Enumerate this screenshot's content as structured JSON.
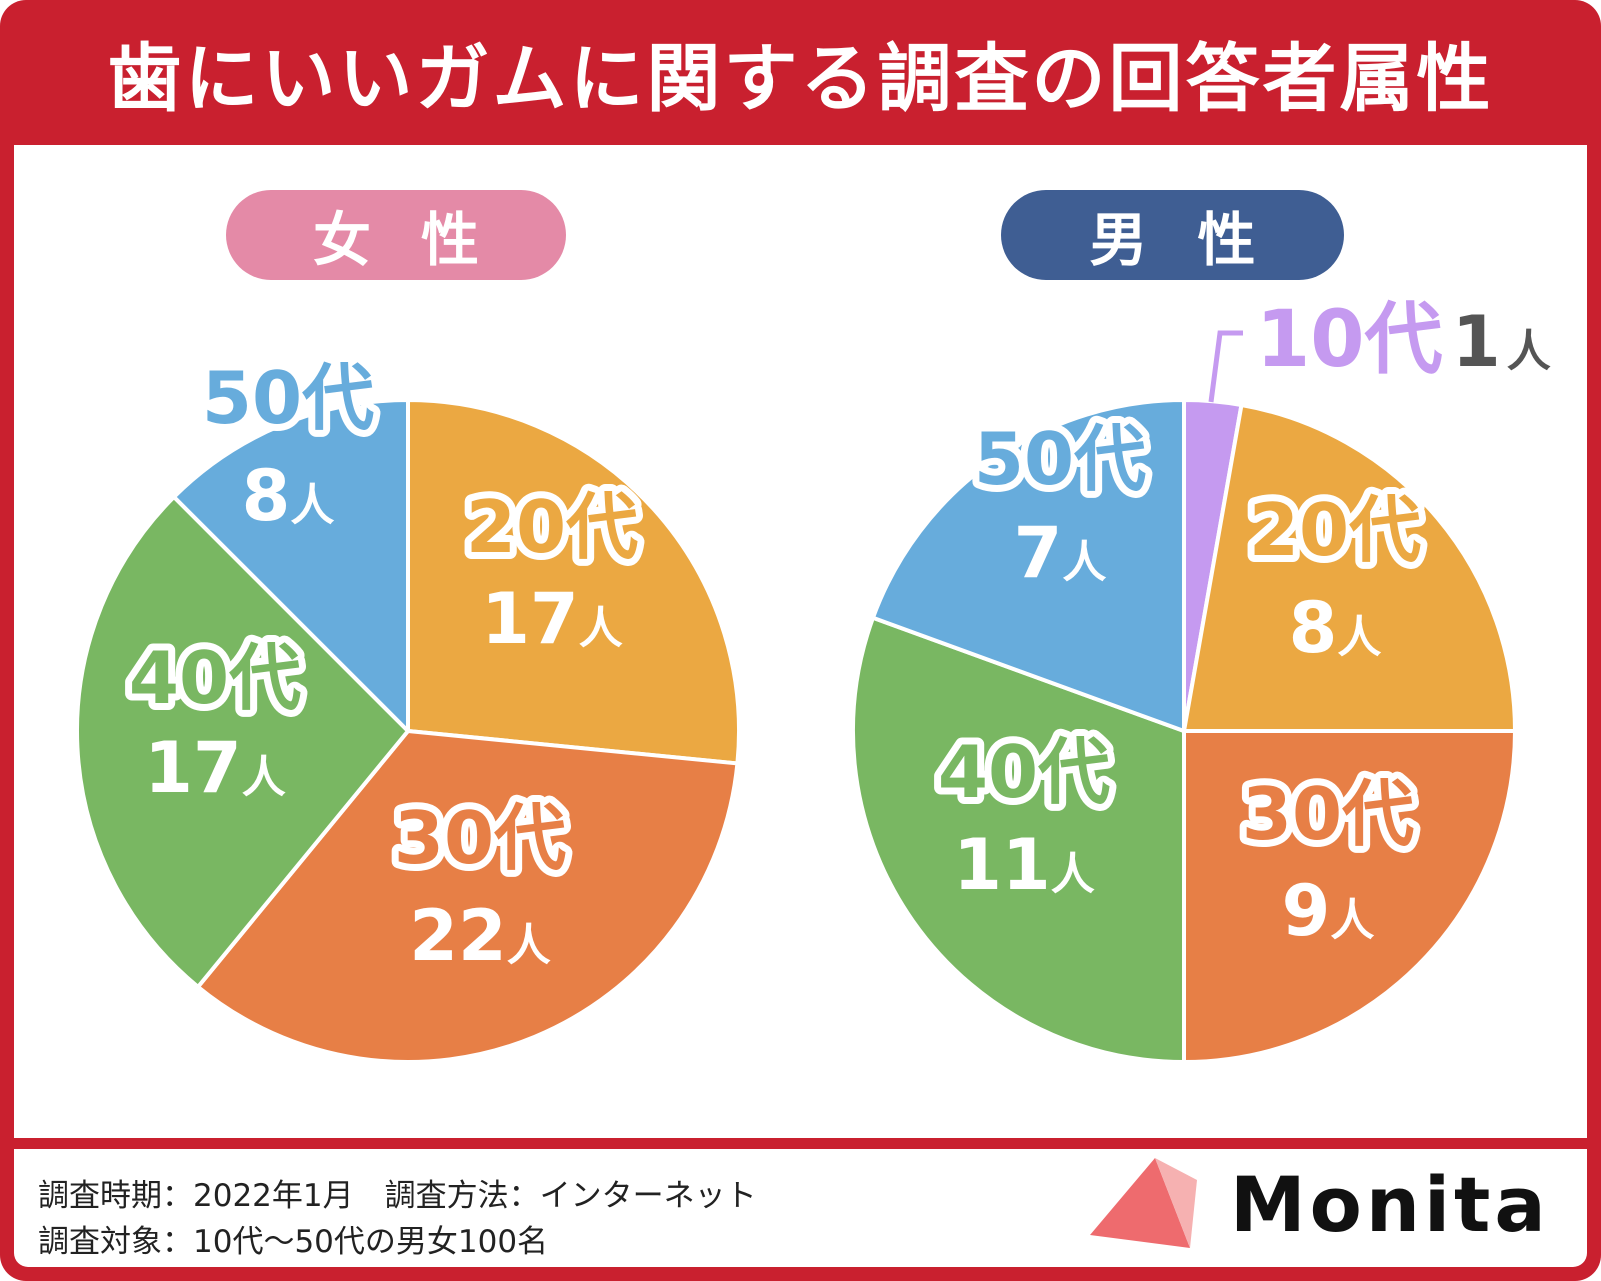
{
  "title": "歯にいいガムに関する調査の回答者属性",
  "panels": {
    "female_label": "女性",
    "male_label": "男性"
  },
  "footer": {
    "period": "調査時期：2022年1月　調査方法：インターネット",
    "target": "調査対象：10代〜50代の男女100名"
  },
  "brand": "Monita",
  "colors": {
    "frame": "#c9202f",
    "female_pill": "#e48aa7",
    "male_pill": "#3f5e93",
    "teens": "#c59af0",
    "twenties": "#eba842",
    "thirties": "#e77f46",
    "forties": "#79b762",
    "fifties": "#67acdc",
    "logo_mark": "#ee6b6e"
  },
  "chart_data": [
    {
      "type": "pie",
      "title": "女性",
      "start": "12 o'clock, clockwise",
      "slices": [
        {
          "category": "20代",
          "value": 17,
          "unit": "人",
          "color": "#eba842"
        },
        {
          "category": "30代",
          "value": 22,
          "unit": "人",
          "color": "#e77f46"
        },
        {
          "category": "40代",
          "value": 17,
          "unit": "人",
          "color": "#79b762"
        },
        {
          "category": "50代",
          "value": 8,
          "unit": "人",
          "color": "#67acdc"
        }
      ]
    },
    {
      "type": "pie",
      "title": "男性",
      "start": "12 o'clock, clockwise",
      "slices": [
        {
          "category": "10代",
          "value": 1,
          "unit": "人",
          "color": "#c59af0"
        },
        {
          "category": "20代",
          "value": 8,
          "unit": "人",
          "color": "#eba842"
        },
        {
          "category": "30代",
          "value": 9,
          "unit": "人",
          "color": "#e77f46"
        },
        {
          "category": "40代",
          "value": 11,
          "unit": "人",
          "color": "#79b762"
        },
        {
          "category": "50代",
          "value": 7,
          "unit": "人",
          "color": "#67acdc"
        }
      ]
    }
  ]
}
